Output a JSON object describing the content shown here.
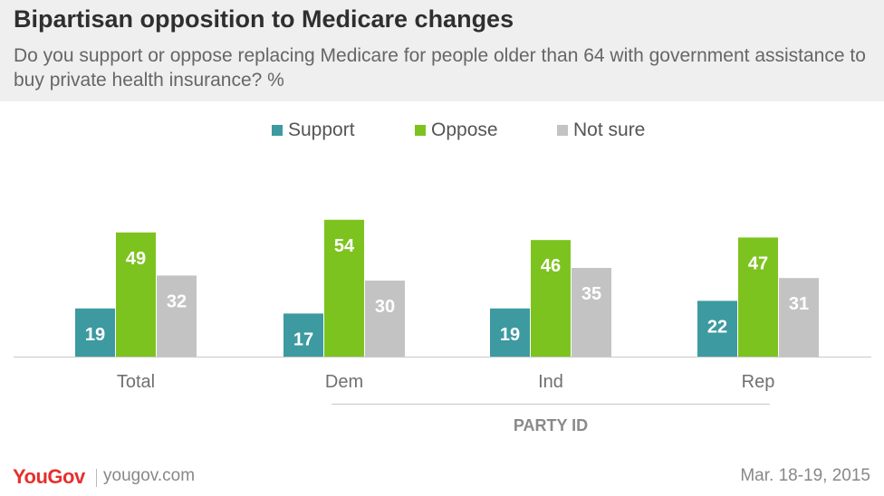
{
  "header": {
    "title": "Bipartisan opposition to Medicare changes",
    "subtitle": "Do you support or oppose replacing Medicare for people older than 64 with government assistance to buy private health insurance? %"
  },
  "colors": {
    "support": "#3c9aa0",
    "oppose": "#7dc31f",
    "not_sure": "#c3c3c3"
  },
  "chart_data": {
    "type": "bar",
    "categories": [
      "Total",
      "Dem",
      "Ind",
      "Rep"
    ],
    "series": [
      {
        "name": "Support",
        "values": [
          19,
          17,
          19,
          22
        ]
      },
      {
        "name": "Oppose",
        "values": [
          49,
          54,
          46,
          47
        ]
      },
      {
        "name": "Not sure",
        "values": [
          32,
          30,
          35,
          31
        ]
      }
    ],
    "group_label": "PARTY ID",
    "legend_position": "top-center",
    "grid": false,
    "ylim": [
      0,
      54
    ]
  },
  "footer": {
    "brand": "YouGov",
    "url": "yougov.com",
    "date": "Mar. 18-19, 2015"
  }
}
